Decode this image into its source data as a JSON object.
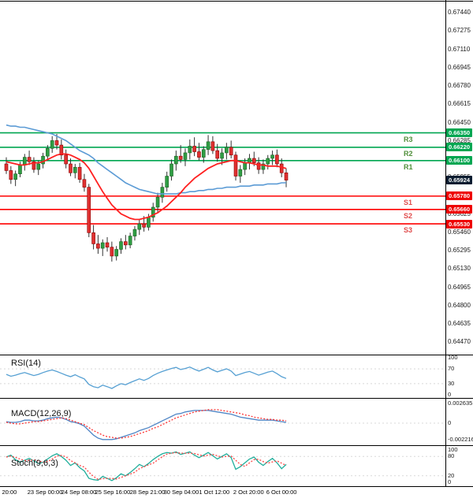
{
  "colors": {
    "up_candle": "#2f9e44",
    "up_stroke": "#1b5e20",
    "down_candle": "#e03131",
    "down_stroke": "#8b0000",
    "wick": "#333333",
    "resistance_line": "#00a651",
    "support_line": "#ff0000",
    "resistance_badge": "#00a651",
    "support_badge": "#ee0000",
    "resistance_label": "#4f8f3a",
    "support_label": "#e04b4b",
    "price_badge": "#0b1c30",
    "ma_fast": "#ff2020",
    "ma_slow": "#5b9bd5",
    "rsi_line": "#56a0d3",
    "macd_line": "#4f86c6",
    "macd_signal": "#ff3333",
    "stoch_k": "#1fae9b",
    "stoch_d": "#ff4444",
    "guide": "#d8d8d8"
  },
  "price_axis": {
    "ticks": [
      "0.67440",
      "0.67275",
      "0.67110",
      "0.66945",
      "0.66780",
      "0.66615",
      "0.66450",
      "0.66285",
      "0.66120",
      "0.65955",
      "0.65790",
      "0.65625",
      "0.65460",
      "0.65295",
      "0.65130",
      "0.64965",
      "0.64800",
      "0.64635",
      "0.64470"
    ]
  },
  "current_price": {
    "value": 0.65924,
    "display": "0.65924"
  },
  "chart_data": {
    "type": "candlestick",
    "ylim": [
      0.64352,
      0.67547
    ],
    "levels": [
      {
        "label": "R3",
        "value": 0.6635,
        "display": "0.66350",
        "type": "resistance"
      },
      {
        "label": "R2",
        "value": 0.6622,
        "display": "0.66220",
        "type": "resistance"
      },
      {
        "label": "R1",
        "value": 0.661,
        "display": "0.66100",
        "type": "resistance"
      },
      {
        "label": "S1",
        "value": 0.6578,
        "display": "0.65780",
        "type": "support"
      },
      {
        "label": "S2",
        "value": 0.6566,
        "display": "0.65660",
        "type": "support"
      },
      {
        "label": "S3",
        "value": 0.6553,
        "display": "0.65530",
        "type": "support"
      }
    ],
    "ohlc": [
      [
        0.6607,
        0.6613,
        0.6598,
        0.6601
      ],
      [
        0.6601,
        0.6605,
        0.6589,
        0.6593
      ],
      [
        0.6593,
        0.6601,
        0.6587,
        0.6598
      ],
      [
        0.6598,
        0.6609,
        0.6595,
        0.6606
      ],
      [
        0.6606,
        0.6616,
        0.6601,
        0.6613
      ],
      [
        0.6613,
        0.6619,
        0.6606,
        0.6609
      ],
      [
        0.6609,
        0.6613,
        0.6599,
        0.6602
      ],
      [
        0.6602,
        0.661,
        0.6597,
        0.6607
      ],
      [
        0.6607,
        0.6617,
        0.6603,
        0.6614
      ],
      [
        0.6614,
        0.6624,
        0.661,
        0.6621
      ],
      [
        0.6621,
        0.6632,
        0.6617,
        0.6628
      ],
      [
        0.6628,
        0.6634,
        0.662,
        0.6624
      ],
      [
        0.6624,
        0.6629,
        0.6611,
        0.6615
      ],
      [
        0.6615,
        0.662,
        0.6603,
        0.6607
      ],
      [
        0.6607,
        0.6612,
        0.6596,
        0.6599
      ],
      [
        0.6599,
        0.6607,
        0.6594,
        0.6604
      ],
      [
        0.6604,
        0.6608,
        0.659,
        0.6593
      ],
      [
        0.6593,
        0.6598,
        0.6582,
        0.6586
      ],
      [
        0.6586,
        0.6589,
        0.6541,
        0.6545
      ],
      [
        0.6545,
        0.6552,
        0.653,
        0.6535
      ],
      [
        0.6535,
        0.6543,
        0.6526,
        0.6531
      ],
      [
        0.6531,
        0.6539,
        0.6524,
        0.6536
      ],
      [
        0.6536,
        0.6541,
        0.6528,
        0.6532
      ],
      [
        0.6532,
        0.6537,
        0.6519,
        0.6524
      ],
      [
        0.6524,
        0.6533,
        0.652,
        0.653
      ],
      [
        0.653,
        0.654,
        0.6526,
        0.6537
      ],
      [
        0.6537,
        0.6543,
        0.653,
        0.6534
      ],
      [
        0.6534,
        0.6545,
        0.6531,
        0.6542
      ],
      [
        0.6542,
        0.6551,
        0.6538,
        0.6548
      ],
      [
        0.6548,
        0.6557,
        0.6543,
        0.6553
      ],
      [
        0.6553,
        0.656,
        0.6546,
        0.655
      ],
      [
        0.655,
        0.6562,
        0.6547,
        0.6559
      ],
      [
        0.6559,
        0.6572,
        0.6555,
        0.6568
      ],
      [
        0.6568,
        0.6581,
        0.6563,
        0.6577
      ],
      [
        0.6577,
        0.659,
        0.6572,
        0.6586
      ],
      [
        0.6586,
        0.66,
        0.6582,
        0.6596
      ],
      [
        0.6596,
        0.6611,
        0.6592,
        0.6607
      ],
      [
        0.6607,
        0.6619,
        0.6601,
        0.6614
      ],
      [
        0.6614,
        0.6624,
        0.6608,
        0.6611
      ],
      [
        0.6611,
        0.6621,
        0.6605,
        0.6617
      ],
      [
        0.6617,
        0.6629,
        0.6611,
        0.6623
      ],
      [
        0.6623,
        0.6631,
        0.6614,
        0.6618
      ],
      [
        0.6618,
        0.6626,
        0.661,
        0.6613
      ],
      [
        0.6613,
        0.6623,
        0.6608,
        0.662
      ],
      [
        0.662,
        0.6633,
        0.6615,
        0.6627
      ],
      [
        0.6627,
        0.6632,
        0.6616,
        0.6619
      ],
      [
        0.6619,
        0.6625,
        0.6609,
        0.6612
      ],
      [
        0.6612,
        0.6621,
        0.6606,
        0.6617
      ],
      [
        0.6617,
        0.6626,
        0.6611,
        0.6622
      ],
      [
        0.6622,
        0.6628,
        0.6612,
        0.6615
      ],
      [
        0.6615,
        0.6618,
        0.6592,
        0.6596
      ],
      [
        0.6596,
        0.6606,
        0.659,
        0.6602
      ],
      [
        0.6602,
        0.6612,
        0.6597,
        0.6608
      ],
      [
        0.6608,
        0.6616,
        0.6602,
        0.6612
      ],
      [
        0.6612,
        0.6618,
        0.6605,
        0.6608
      ],
      [
        0.6608,
        0.6613,
        0.6598,
        0.6602
      ],
      [
        0.6602,
        0.6611,
        0.6598,
        0.6607
      ],
      [
        0.6607,
        0.6615,
        0.6602,
        0.6612
      ],
      [
        0.6612,
        0.6619,
        0.6606,
        0.6615
      ],
      [
        0.6615,
        0.662,
        0.6604,
        0.6607
      ],
      [
        0.6607,
        0.6612,
        0.6595,
        0.6599
      ],
      [
        0.6599,
        0.6603,
        0.6586,
        0.65924
      ]
    ],
    "ma_slow_blue": [
      0.6642,
      0.6641,
      0.6641,
      0.664,
      0.664,
      0.6639,
      0.6638,
      0.6637,
      0.6636,
      0.6635,
      0.6634,
      0.6632,
      0.663,
      0.6628,
      0.6625,
      0.6622,
      0.6619,
      0.6617,
      0.6615,
      0.6612,
      0.6608,
      0.6605,
      0.6602,
      0.6599,
      0.6596,
      0.6593,
      0.659,
      0.6588,
      0.6586,
      0.6584,
      0.6583,
      0.6582,
      0.6581,
      0.658,
      0.658,
      0.658,
      0.658,
      0.658,
      0.6581,
      0.6581,
      0.6582,
      0.6582,
      0.6583,
      0.6583,
      0.6584,
      0.6584,
      0.6585,
      0.6585,
      0.6586,
      0.6586,
      0.6586,
      0.6587,
      0.6587,
      0.6587,
      0.6588,
      0.6588,
      0.6588,
      0.6589,
      0.6589,
      0.6589,
      0.659,
      0.659
    ],
    "ma_fast_red": [
      0.6609,
      0.6608,
      0.6607,
      0.6606,
      0.6606,
      0.6607,
      0.6608,
      0.6608,
      0.6609,
      0.6611,
      0.6613,
      0.6615,
      0.6616,
      0.6616,
      0.6615,
      0.6613,
      0.6611,
      0.6608,
      0.6603,
      0.6596,
      0.6589,
      0.6582,
      0.6576,
      0.657,
      0.6566,
      0.6562,
      0.656,
      0.6558,
      0.6557,
      0.6557,
      0.6558,
      0.6559,
      0.6561,
      0.6563,
      0.6566,
      0.6569,
      0.6573,
      0.6577,
      0.6581,
      0.6586,
      0.659,
      0.6594,
      0.6597,
      0.66,
      0.6603,
      0.6605,
      0.6607,
      0.6608,
      0.6609,
      0.661,
      0.661,
      0.6609,
      0.6608,
      0.6608,
      0.6607,
      0.6606,
      0.6606,
      0.6605,
      0.6605,
      0.6605,
      0.6604,
      0.6603
    ],
    "rsi": {
      "label": "RSI(14)",
      "ticks": [
        "100",
        "70",
        "30",
        "0"
      ],
      "range": [
        0,
        100
      ],
      "values": [
        55,
        50,
        53,
        57,
        60,
        56,
        52,
        55,
        60,
        64,
        67,
        63,
        58,
        53,
        49,
        54,
        48,
        43,
        28,
        22,
        19,
        26,
        22,
        17,
        24,
        30,
        27,
        33,
        38,
        43,
        39,
        44,
        52,
        58,
        63,
        67,
        71,
        74,
        68,
        71,
        75,
        69,
        64,
        69,
        74,
        67,
        62,
        66,
        70,
        64,
        52,
        56,
        60,
        63,
        58,
        53,
        57,
        61,
        64,
        57,
        49,
        44
      ]
    },
    "macd": {
      "label": "MACD(12,26,9)",
      "ticks": [
        "0.002635",
        "0",
        "-0.002216"
      ],
      "range": [
        -0.002216,
        0.002635
      ],
      "macd": [
        0.0002,
        0.0001,
        0.0001,
        0.0002,
        0.0004,
        0.0004,
        0.0003,
        0.0003,
        0.0004,
        0.0006,
        0.0007,
        0.0008,
        0.0007,
        0.0005,
        0.0002,
        0.0001,
        -0.0001,
        -0.0004,
        -0.001,
        -0.0016,
        -0.002,
        -0.0022,
        -0.0022,
        -0.0022,
        -0.0021,
        -0.0019,
        -0.0017,
        -0.0015,
        -0.0013,
        -0.001,
        -0.0008,
        -0.0006,
        -0.0003,
        0.0,
        0.0003,
        0.0006,
        0.0009,
        0.0012,
        0.0013,
        0.0015,
        0.0016,
        0.0017,
        0.0017,
        0.0017,
        0.0017,
        0.0016,
        0.0015,
        0.0014,
        0.0013,
        0.0012,
        0.001,
        0.0008,
        0.0007,
        0.0006,
        0.0005,
        0.0004,
        0.0004,
        0.0004,
        0.0004,
        0.0003,
        0.0002,
        0.0001
      ],
      "signal": [
        0.0001,
        0.0,
        -0.0001,
        -0.0001,
        0.0,
        0.0001,
        0.0002,
        0.0002,
        0.0003,
        0.0004,
        0.0005,
        0.0006,
        0.0007,
        0.0006,
        0.0004,
        0.0002,
        0.0,
        -0.0002,
        -0.0006,
        -0.001,
        -0.0013,
        -0.0016,
        -0.0018,
        -0.0019,
        -0.002,
        -0.002,
        -0.0019,
        -0.0018,
        -0.0016,
        -0.0014,
        -0.0012,
        -0.001,
        -0.0007,
        -0.0005,
        -0.0002,
        0.0001,
        0.0004,
        0.0007,
        0.0009,
        0.0011,
        0.0013,
        0.0015,
        0.0016,
        0.0017,
        0.0018,
        0.0018,
        0.0018,
        0.0017,
        0.0016,
        0.0015,
        0.0014,
        0.0013,
        0.0011,
        0.001,
        0.0008,
        0.0007,
        0.0006,
        0.0005,
        0.0005,
        0.0004,
        0.0004,
        0.0003
      ]
    },
    "stoch": {
      "label": "Stoch(9,6,3)",
      "ticks": [
        "100",
        "80",
        "20",
        "0"
      ],
      "range": [
        0,
        100
      ],
      "k": [
        78,
        84,
        70,
        62,
        68,
        74,
        66,
        58,
        62,
        72,
        82,
        88,
        80,
        68,
        52,
        60,
        45,
        35,
        12,
        8,
        6,
        18,
        12,
        5,
        14,
        26,
        20,
        30,
        42,
        55,
        48,
        58,
        70,
        80,
        88,
        92,
        90,
        94,
        86,
        90,
        94,
        84,
        76,
        84,
        92,
        82,
        72,
        80,
        88,
        76,
        40,
        48,
        60,
        72,
        78,
        62,
        52,
        64,
        74,
        60,
        42,
        55
      ],
      "d": [
        78,
        81,
        77,
        72,
        67,
        68,
        69,
        66,
        62,
        64,
        72,
        81,
        83,
        79,
        67,
        60,
        52,
        47,
        31,
        18,
        9,
        11,
        12,
        12,
        10,
        15,
        20,
        25,
        31,
        42,
        48,
        54,
        59,
        69,
        79,
        87,
        90,
        92,
        90,
        90,
        90,
        89,
        85,
        81,
        84,
        86,
        82,
        78,
        80,
        81,
        68,
        55,
        49,
        60,
        70,
        71,
        64,
        59,
        63,
        66,
        59,
        52
      ]
    },
    "x_axis": {
      "labels": [
        {
          "t": "20:00",
          "f": 0.021
        },
        {
          "t": "23 Sep 00:00",
          "f": 0.101
        },
        {
          "t": "24 Sep 08:00",
          "f": 0.177
        },
        {
          "t": "25 Sep 16:00",
          "f": 0.253
        },
        {
          "t": "28 Sep 21:00",
          "f": 0.331
        },
        {
          "t": "30 Sep 04:00",
          "f": 0.407
        },
        {
          "t": "1 Oct 12:00",
          "f": 0.481
        },
        {
          "t": "2 Oct 20:00",
          "f": 0.558
        },
        {
          "t": "6 Oct 00:00",
          "f": 0.632
        }
      ]
    }
  }
}
